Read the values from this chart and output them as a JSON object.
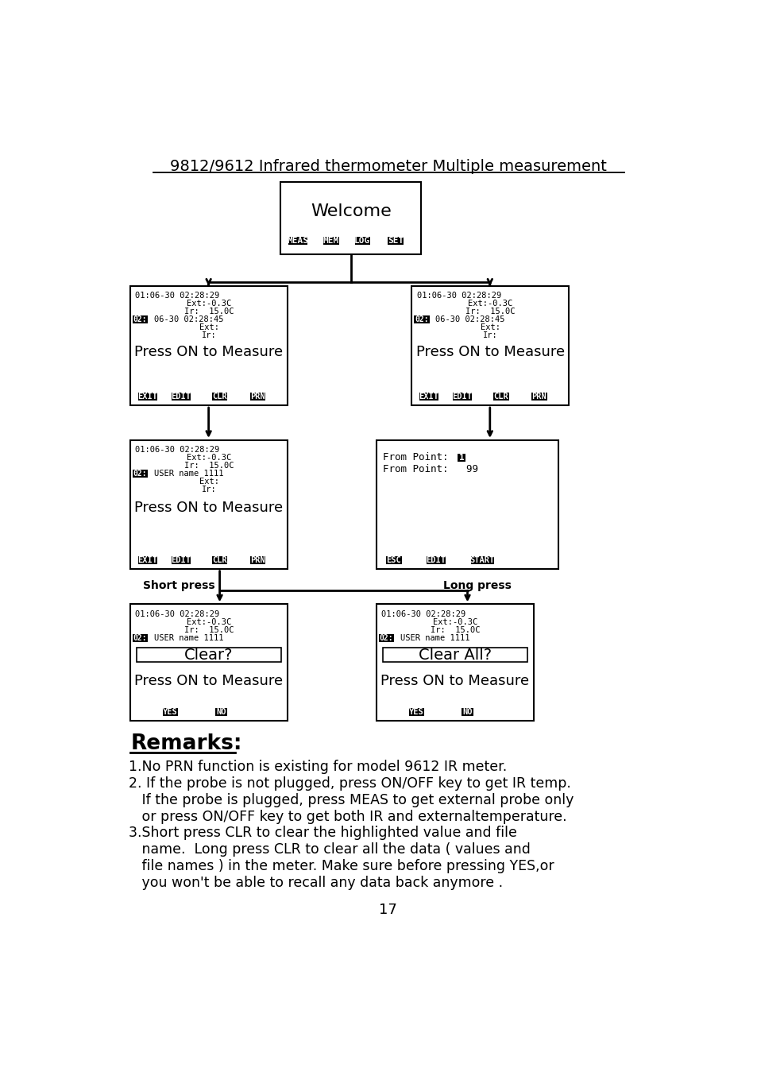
{
  "title": "9812/9612 Infrared thermometer Multiple measurement",
  "bg_color": "#ffffff",
  "page_number": "17",
  "remark_lines": [
    "1.No PRN function is existing for model 9612 IR meter.",
    "2. If the probe is not plugged, press ON/OFF key to get IR temp.",
    "   If the probe is plugged, press MEAS to get external probe only",
    "   or press ON/OFF key to get both IR and externaltemperature.",
    "3.Short press CLR to clear the highlighted value and file",
    "   name.  Long press CLR to clear all the data ( values and",
    "   file names ) in the meter. Make sure before pressing YES,or",
    "   you won't be able to recall any data back anymore ."
  ]
}
